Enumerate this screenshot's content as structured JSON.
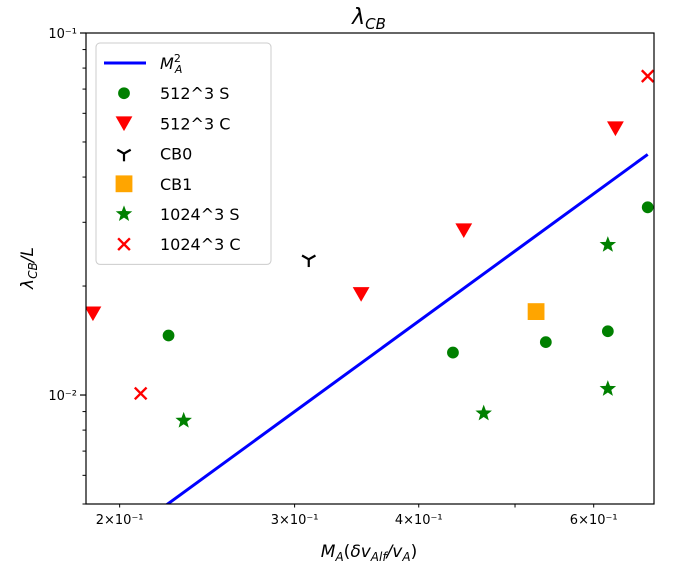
{
  "chart_data": {
    "type": "scatter",
    "title": "λCB",
    "xlabel": "MA(δvAlf/vA)",
    "ylabel": "λCB/L",
    "xscale": "log",
    "yscale": "log",
    "xlim": [
      0.185,
      0.69
    ],
    "ylim": [
      0.005,
      0.1
    ],
    "grid": false,
    "legend_position": "top-left",
    "x_ticks": [
      {
        "value": 0.2,
        "label": "2×10⁻¹"
      },
      {
        "value": 0.3,
        "label": "3×10⁻¹"
      },
      {
        "value": 0.4,
        "label": "4×10⁻¹"
      },
      {
        "value": 0.6,
        "label": "6×10⁻¹"
      }
    ],
    "y_ticks": [
      {
        "value": 0.1,
        "label": "10⁻¹"
      },
      {
        "value": 0.01,
        "label": "10⁻²"
      }
    ],
    "line": {
      "name": "M²A",
      "color": "#0000ff",
      "x": [
        0.222,
        0.68
      ],
      "y": [
        0.00493,
        0.0462
      ]
    },
    "series": [
      {
        "name": "512^3 S",
        "marker": "circle",
        "color": "#008000",
        "points": [
          {
            "x": 0.224,
            "y": 0.0146
          },
          {
            "x": 0.433,
            "y": 0.0131
          },
          {
            "x": 0.537,
            "y": 0.014
          },
          {
            "x": 0.62,
            "y": 0.015
          },
          {
            "x": 0.68,
            "y": 0.033
          }
        ]
      },
      {
        "name": "512^3 C",
        "marker": "triangle-down",
        "color": "#ff0000",
        "points": [
          {
            "x": 0.188,
            "y": 0.0168
          },
          {
            "x": 0.35,
            "y": 0.019
          },
          {
            "x": 0.444,
            "y": 0.0285
          },
          {
            "x": 0.631,
            "y": 0.0545
          }
        ]
      },
      {
        "name": "CB0",
        "marker": "tri-down",
        "color": "#000000",
        "points": [
          {
            "x": 0.31,
            "y": 0.0237
          }
        ]
      },
      {
        "name": "CB1",
        "marker": "square",
        "color": "#ffa500",
        "points": [
          {
            "x": 0.525,
            "y": 0.017
          }
        ]
      },
      {
        "name": "1024^3 S",
        "marker": "star",
        "color": "#008000",
        "points": [
          {
            "x": 0.232,
            "y": 0.0085
          },
          {
            "x": 0.465,
            "y": 0.0089
          },
          {
            "x": 0.62,
            "y": 0.0104
          },
          {
            "x": 0.62,
            "y": 0.026
          }
        ]
      },
      {
        "name": "1024^3 C",
        "marker": "x",
        "color": "#ff0000",
        "points": [
          {
            "x": 0.21,
            "y": 0.0101
          },
          {
            "x": 0.68,
            "y": 0.076
          }
        ]
      }
    ]
  }
}
